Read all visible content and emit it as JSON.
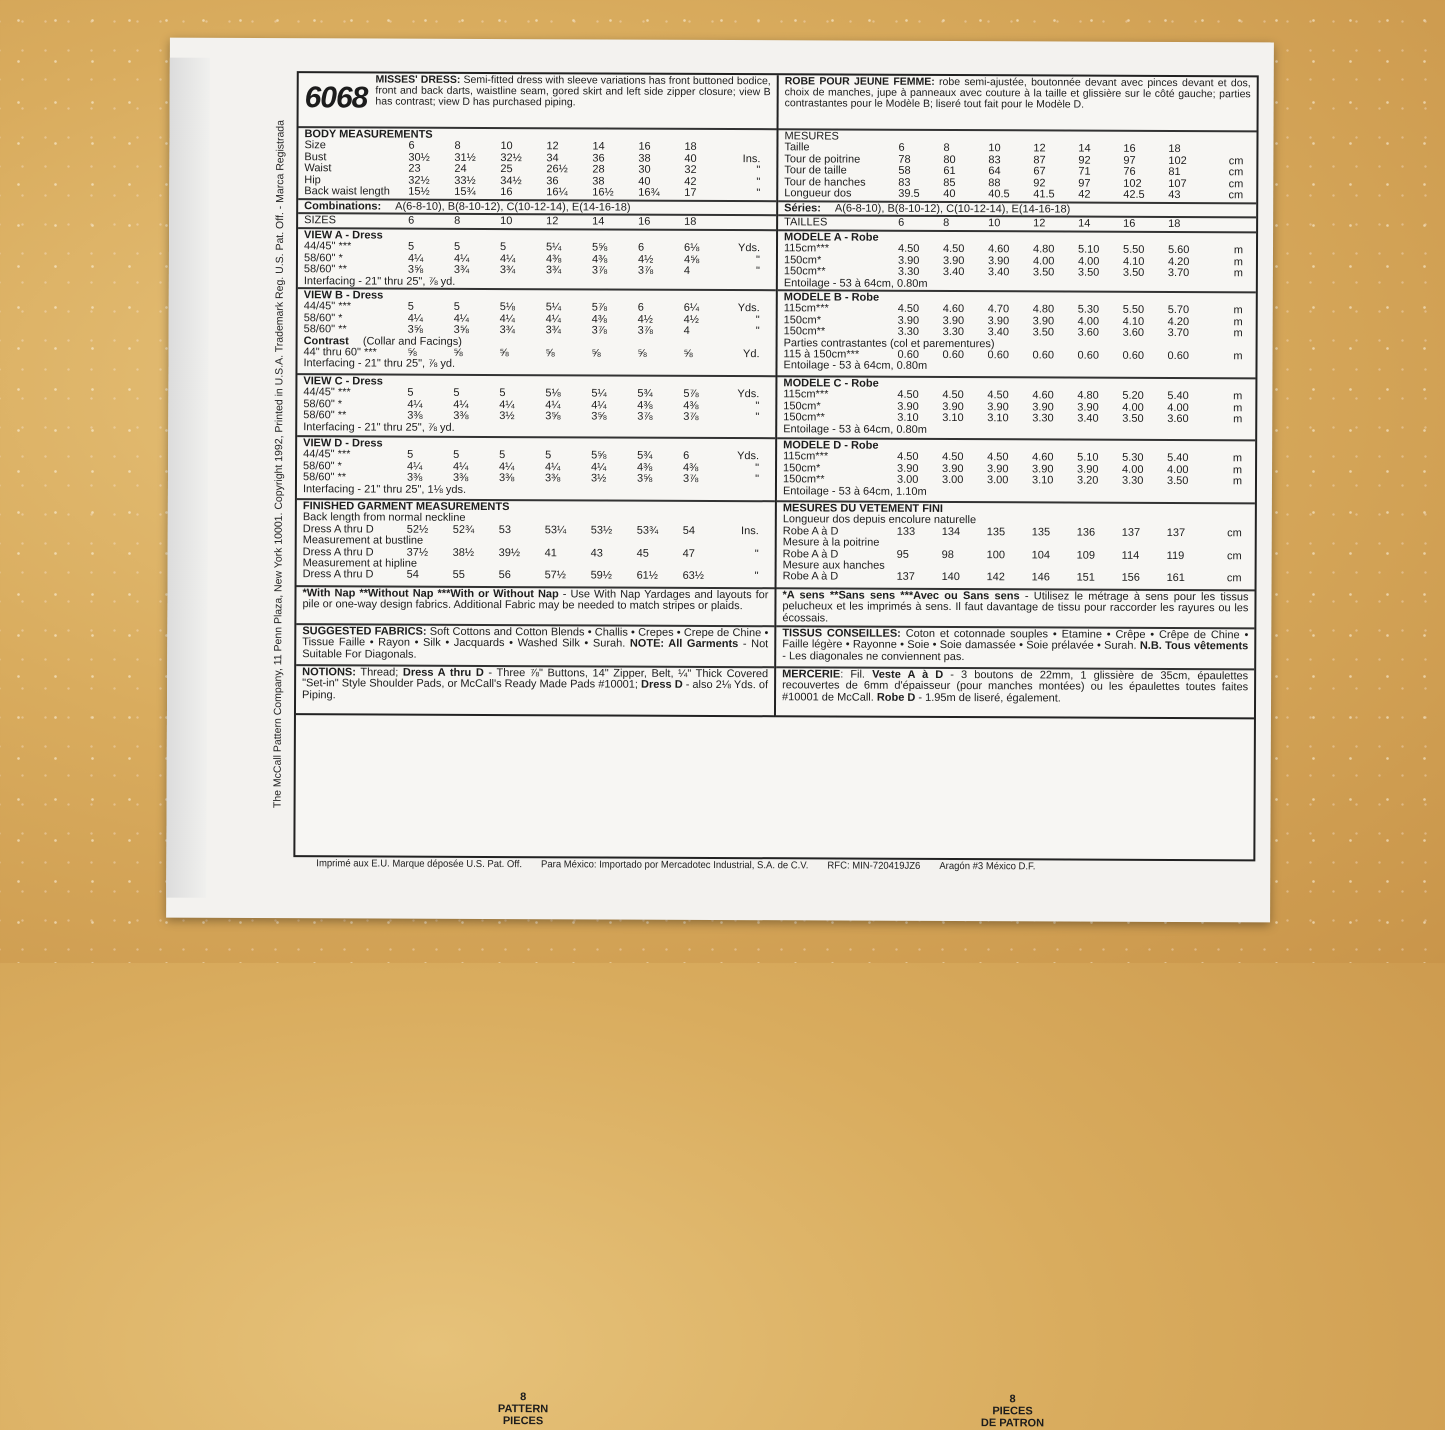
{
  "side_text": "The McCall Pattern Company, 11 Penn Plaza, New York 10001.  Copyright 1992, Printed in U.S.A. Trademark Reg. U.S. Pat. Off. - Marca Registrada",
  "left": {
    "header": {
      "number": "6068",
      "title": "MISSES' DRESS:",
      "text": " Semi-fitted dress with sleeve variations has front buttoned bodice, front and back darts, waistline seam, gored skirt and left side zipper closure; view B has contrast; view D has purchased piping."
    },
    "sections": [
      {
        "rows": [
          {
            "h": "BODY MEASUREMENTS"
          },
          {
            "l": "Size",
            "v": [
              "6",
              "8",
              "10",
              "12",
              "14",
              "16",
              "18"
            ],
            "u": ""
          },
          {
            "l": "Bust",
            "v": [
              "30½",
              "31½",
              "32½",
              "34",
              "36",
              "38",
              "40"
            ],
            "u": "Ins."
          },
          {
            "l": "Waist",
            "v": [
              "23",
              "24",
              "25",
              "26½",
              "28",
              "30",
              "32"
            ],
            "u": "\""
          },
          {
            "l": "Hip",
            "v": [
              "32½",
              "33½",
              "34½",
              "36",
              "38",
              "40",
              "42"
            ],
            "u": "\""
          },
          {
            "l": "Back waist length",
            "v": [
              "15½",
              "15¾",
              "16",
              "16¼",
              "16½",
              "16¾",
              "17"
            ],
            "u": "\""
          }
        ]
      },
      {
        "rows": [
          {
            "bl": "Combinations:",
            "t": "A(6-8-10), B(8-10-12), C(10-12-14), E(14-16-18)"
          }
        ]
      },
      {
        "rows": [
          {
            "l": "SIZES",
            "v": [
              "6",
              "8",
              "10",
              "12",
              "14",
              "16",
              "18"
            ],
            "u": ""
          }
        ]
      },
      {
        "rows": [
          {
            "h": "VIEW A - Dress"
          },
          {
            "l": "44/45\" ***",
            "v": [
              "5",
              "5",
              "5",
              "5¼",
              "5⅝",
              "6",
              "6⅛"
            ],
            "u": "Yds."
          },
          {
            "l": "58/60\" *",
            "v": [
              "4¼",
              "4¼",
              "4¼",
              "4⅜",
              "4⅜",
              "4½",
              "4⅝"
            ],
            "u": "\""
          },
          {
            "l": "58/60\" **",
            "v": [
              "3⅝",
              "3¾",
              "3¾",
              "3¾",
              "3⅞",
              "3⅞",
              "4"
            ],
            "u": "\""
          },
          {
            "t": "Interfacing - 21\" thru 25\", ⅞ yd."
          }
        ]
      },
      {
        "rows": [
          {
            "h": "VIEW B - Dress"
          },
          {
            "l": "44/45\" ***",
            "v": [
              "5",
              "5",
              "5⅛",
              "5¼",
              "5⅞",
              "6",
              "6¼"
            ],
            "u": "Yds."
          },
          {
            "l": "58/60\" *",
            "v": [
              "4¼",
              "4¼",
              "4¼",
              "4¼",
              "4⅜",
              "4½",
              "4½"
            ],
            "u": "\""
          },
          {
            "l": "58/60\" **",
            "v": [
              "3⅝",
              "3⅝",
              "3¾",
              "3¾",
              "3⅞",
              "3⅞",
              "4"
            ],
            "u": "\""
          },
          {
            "bl": "Contrast",
            "t": " (Collar and Facings)"
          },
          {
            "l": "44\" thru 60\" ***",
            "v": [
              "⅝",
              "⅝",
              "⅝",
              "⅝",
              "⅝",
              "⅝",
              "⅝"
            ],
            "u": "Yd."
          },
          {
            "t": "Interfacing - 21\" thru 25\", ⅞ yd."
          }
        ]
      },
      {
        "rows": [
          {
            "h": "VIEW C - Dress"
          },
          {
            "l": "44/45\" ***",
            "v": [
              "5",
              "5",
              "5",
              "5⅛",
              "5¼",
              "5¾",
              "5⅞"
            ],
            "u": "Yds."
          },
          {
            "l": "58/60\" *",
            "v": [
              "4¼",
              "4¼",
              "4¼",
              "4¼",
              "4¼",
              "4⅜",
              "4⅜"
            ],
            "u": "\""
          },
          {
            "l": "58/60\" **",
            "v": [
              "3⅜",
              "3⅜",
              "3½",
              "3⅝",
              "3⅝",
              "3⅞",
              "3⅞"
            ],
            "u": "\""
          },
          {
            "t": "Interfacing - 21\" thru 25\", ⅞ yd."
          }
        ]
      },
      {
        "rows": [
          {
            "h": "VIEW D - Dress"
          },
          {
            "l": "44/45\" ***",
            "v": [
              "5",
              "5",
              "5",
              "5",
              "5⅝",
              "5¾",
              "6"
            ],
            "u": "Yds."
          },
          {
            "l": "58/60\" *",
            "v": [
              "4¼",
              "4¼",
              "4¼",
              "4¼",
              "4¼",
              "4⅜",
              "4⅜"
            ],
            "u": "\""
          },
          {
            "l": "58/60\" **",
            "v": [
              "3⅜",
              "3⅜",
              "3⅜",
              "3⅜",
              "3½",
              "3⅝",
              "3⅞"
            ],
            "u": "\""
          },
          {
            "t": "Interfacing - 21\" thru 25\", 1⅛ yds."
          }
        ]
      },
      {
        "rows": [
          {
            "h": "FINISHED GARMENT MEASUREMENTS"
          },
          {
            "t": "Back length from normal neckline"
          },
          {
            "l": "Dress A thru D",
            "v": [
              "52½",
              "52¾",
              "53",
              "53¼",
              "53½",
              "53¾",
              "54"
            ],
            "u": "Ins."
          },
          {
            "t": "Measurement at bustline"
          },
          {
            "l": "Dress A thru D",
            "v": [
              "37½",
              "38½",
              "39½",
              "41",
              "43",
              "45",
              "47"
            ],
            "u": "\""
          },
          {
            "t": "Measurement at hipline"
          },
          {
            "l": "Dress A thru D",
            "v": [
              "54",
              "55",
              "56",
              "57½",
              "59½",
              "61½",
              "63½"
            ],
            "u": "\""
          }
        ]
      },
      {
        "p": [
          {
            "b": true,
            "t": "*With Nap **Without Nap ***With or Without Nap"
          },
          {
            "t": " - Use With Nap Yardages and layouts for pile or one-way design fabrics. Additional Fabric may be needed to match stripes or plaids."
          }
        ]
      },
      {
        "p": [
          {
            "b": true,
            "t": "SUGGESTED FABRICS:"
          },
          {
            "t": " Soft Cottons and Cotton Blends • Challis • Crepes • Crepe de Chine • Tissue Faille • Rayon • Silk • Jacquards • Washed Silk • Surah. "
          },
          {
            "b": true,
            "t": "NOTE: All Garments"
          },
          {
            "t": " - Not Suitable For Diagonals."
          }
        ]
      },
      {
        "p": [
          {
            "b": true,
            "t": "NOTIONS:"
          },
          {
            "t": " Thread; "
          },
          {
            "b": true,
            "t": "Dress A thru D"
          },
          {
            "t": " - Three ⅞\" Buttons, 14\" Zipper, Belt, ¼\" Thick Covered \"Set-in\" Style Shoulder Pads, or McCall's Ready Made Pads #10001; "
          },
          {
            "b": true,
            "t": "Dress D"
          },
          {
            "t": " - also 2⅛ Yds. of Piping."
          }
        ]
      }
    ]
  },
  "right": {
    "header": {
      "title": "ROBE POUR JEUNE FEMME:",
      "text": " robe semi-ajustée, boutonnée devant avec pinces devant et dos, choix de  manches, jupe à panneaux avec couture à la taille et glissière sur le côté gauche; parties contrastantes pour le Modèle B; liseré tout fait pour le Modèle D."
    },
    "sections": [
      {
        "rows": [
          {
            "t": "MESURES"
          },
          {
            "l": "Taille",
            "v": [
              "6",
              "8",
              "10",
              "12",
              "14",
              "16",
              "18"
            ],
            "u": ""
          },
          {
            "l": "Tour de poitrine",
            "v": [
              "78",
              "80",
              "83",
              "87",
              "92",
              "97",
              "102"
            ],
            "u": "cm"
          },
          {
            "l": "Tour de taille",
            "v": [
              "58",
              "61",
              "64",
              "67",
              "71",
              "76",
              "81"
            ],
            "u": "cm"
          },
          {
            "l": "Tour de hanches",
            "v": [
              "83",
              "85",
              "88",
              "92",
              "97",
              "102",
              "107"
            ],
            "u": "cm"
          },
          {
            "l": "Longueur dos",
            "v": [
              "39.5",
              "40",
              "40.5",
              "41.5",
              "42",
              "42.5",
              "43"
            ],
            "u": "cm"
          }
        ]
      },
      {
        "rows": [
          {
            "bl": "Séries:",
            "t": "A(6-8-10), B(8-10-12), C(10-12-14), E(14-16-18)"
          }
        ]
      },
      {
        "rows": [
          {
            "l": "TAILLES",
            "v": [
              "6",
              "8",
              "10",
              "12",
              "14",
              "16",
              "18"
            ],
            "u": ""
          }
        ]
      },
      {
        "rows": [
          {
            "h": "MODELE A - Robe"
          },
          {
            "l": "115cm***",
            "v": [
              "4.50",
              "4.50",
              "4.60",
              "4.80",
              "5.10",
              "5.50",
              "5.60"
            ],
            "u": "m"
          },
          {
            "l": "150cm*",
            "v": [
              "3.90",
              "3.90",
              "3.90",
              "4.00",
              "4.00",
              "4.10",
              "4.20"
            ],
            "u": "m"
          },
          {
            "l": "150cm**",
            "v": [
              "3.30",
              "3.40",
              "3.40",
              "3.50",
              "3.50",
              "3.50",
              "3.70"
            ],
            "u": "m"
          },
          {
            "t": "Entoilage - 53 à 64cm, 0.80m"
          }
        ]
      },
      {
        "rows": [
          {
            "h": "MODELE B - Robe"
          },
          {
            "l": "115cm***",
            "v": [
              "4.50",
              "4.60",
              "4.70",
              "4.80",
              "5.30",
              "5.50",
              "5.70"
            ],
            "u": "m"
          },
          {
            "l": "150cm*",
            "v": [
              "3.90",
              "3.90",
              "3.90",
              "3.90",
              "4.00",
              "4.10",
              "4.20"
            ],
            "u": "m"
          },
          {
            "l": "150cm**",
            "v": [
              "3.30",
              "3.30",
              "3.40",
              "3.50",
              "3.60",
              "3.60",
              "3.70"
            ],
            "u": "m"
          },
          {
            "t": "Parties contrastantes (col et parementures)"
          },
          {
            "l": "115 à 150cm***",
            "v": [
              "0.60",
              "0.60",
              "0.60",
              "0.60",
              "0.60",
              "0.60",
              "0.60"
            ],
            "u": "m"
          },
          {
            "t": "Entoilage - 53 à 64cm, 0.80m"
          }
        ]
      },
      {
        "rows": [
          {
            "h": "MODELE C - Robe"
          },
          {
            "l": "115cm***",
            "v": [
              "4.50",
              "4.50",
              "4.50",
              "4.60",
              "4.80",
              "5.20",
              "5.40"
            ],
            "u": "m"
          },
          {
            "l": "150cm*",
            "v": [
              "3.90",
              "3.90",
              "3.90",
              "3.90",
              "3.90",
              "4.00",
              "4.00"
            ],
            "u": "m"
          },
          {
            "l": "150cm**",
            "v": [
              "3.10",
              "3.10",
              "3.10",
              "3.30",
              "3.40",
              "3.50",
              "3.60"
            ],
            "u": "m"
          },
          {
            "t": "Entoilage - 53 à 64cm, 0.80m"
          }
        ]
      },
      {
        "rows": [
          {
            "h": "MODELE D - Robe"
          },
          {
            "l": "115cm***",
            "v": [
              "4.50",
              "4.50",
              "4.50",
              "4.60",
              "5.10",
              "5.30",
              "5.40"
            ],
            "u": "m"
          },
          {
            "l": "150cm*",
            "v": [
              "3.90",
              "3.90",
              "3.90",
              "3.90",
              "3.90",
              "4.00",
              "4.00"
            ],
            "u": "m"
          },
          {
            "l": "150cm**",
            "v": [
              "3.00",
              "3.00",
              "3.00",
              "3.10",
              "3.20",
              "3.30",
              "3.50"
            ],
            "u": "m"
          },
          {
            "t": "Entoilage - 53 à 64cm,  1.10m"
          }
        ]
      },
      {
        "rows": [
          {
            "h": "MESURES DU VETEMENT FINI"
          },
          {
            "t": "Longueur dos depuis encolure naturelle"
          },
          {
            "l": "Robe  A à D",
            "v": [
              "133",
              "134",
              "135",
              "135",
              "136",
              "137",
              "137"
            ],
            "u": "cm"
          },
          {
            "t": "Mesure à la poitrine"
          },
          {
            "l": "Robe  A à D",
            "v": [
              "95",
              "98",
              "100",
              "104",
              "109",
              "114",
              "119"
            ],
            "u": "cm"
          },
          {
            "t": "Mesure aux hanches"
          },
          {
            "l": "Robe  A à D",
            "v": [
              "137",
              "140",
              "142",
              "146",
              "151",
              "156",
              "161"
            ],
            "u": "cm"
          }
        ]
      },
      {
        "p": [
          {
            "b": true,
            "t": "*A sens  **Sans sens  ***Avec ou Sans sens"
          },
          {
            "t": " - Utilisez le métrage à sens pour les tissus pelucheux et les imprimés à sens. Il faut davantage de tissu pour raccorder les rayures ou les écossais."
          }
        ]
      },
      {
        "p": [
          {
            "b": true,
            "t": "TISSUS CONSEILLES:"
          },
          {
            "t": " Coton et cotonnade souples • Etamine • Crêpe • Crêpe de Chine • Faille légère • Rayonne • Soie • Soie damassée • Soie prélavée • Surah. "
          },
          {
            "b": true,
            "t": "N.B. Tous vêtements"
          },
          {
            "t": " - Les diagonales ne conviennent pas."
          }
        ]
      },
      {
        "p": [
          {
            "b": true,
            "t": "MERCERIE"
          },
          {
            "t": ": Fil. "
          },
          {
            "b": true,
            "t": "Veste A à D"
          },
          {
            "t": " - 3 boutons de 22mm, 1 glissière de 35cm, épaulettes recouvertes de 6mm d'épaisseur (pour manches montées) ou les épaulettes toutes faites #10001 de McCall. "
          },
          {
            "b": true,
            "t": "Robe D"
          },
          {
            "t": " -  1.95m de liseré, également."
          }
        ]
      }
    ]
  },
  "pieces_left": [
    "8",
    "PATTERN",
    "PIECES"
  ],
  "pieces_right": [
    "8",
    "PIECES",
    "DE PATRON"
  ],
  "footer": [
    "Imprimé aux E.U. Marque  déposée U.S. Pat. Off.",
    "Para México: Importado por Mercadotec Industrial,  S.A.  de C.V.",
    "RFC: MIN-720419JZ6",
    "Aragón #3  México D.F."
  ]
}
